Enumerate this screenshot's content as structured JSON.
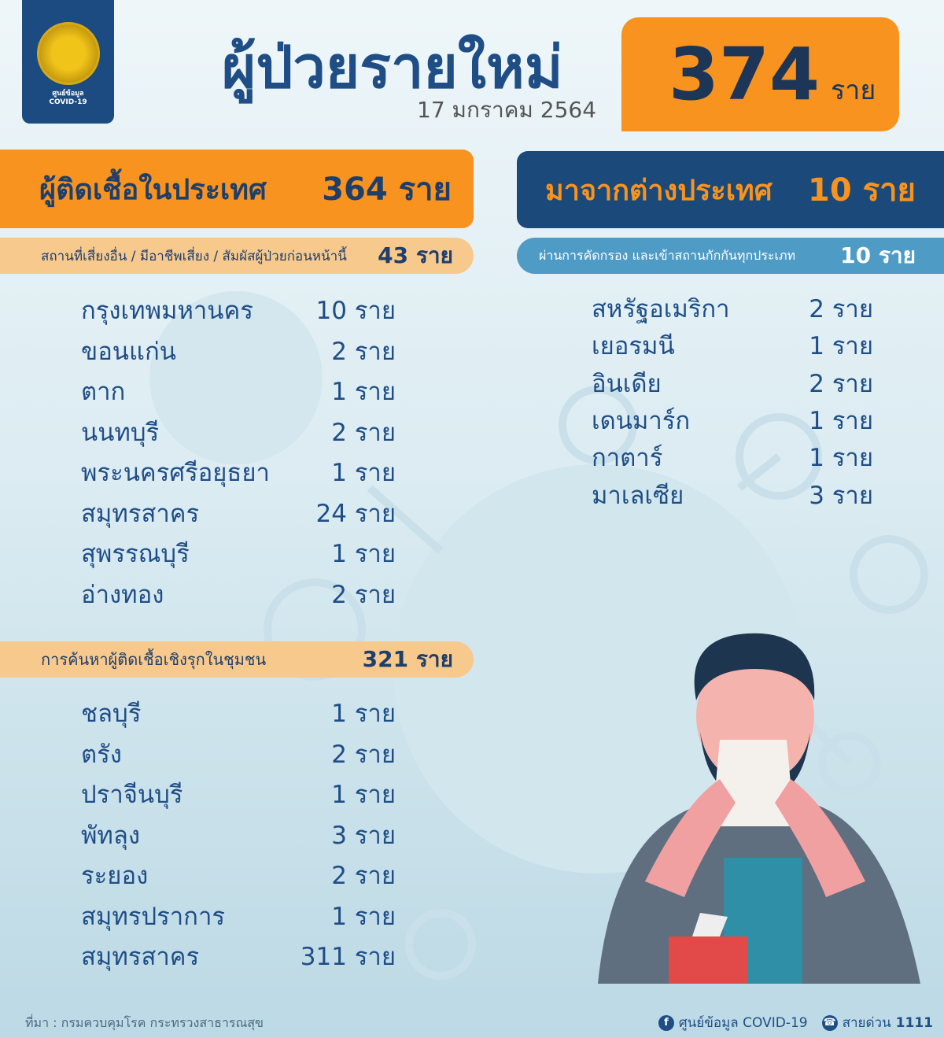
{
  "logo": {
    "text_th": "ศูนย์ข้อมูล",
    "text_en": "COVID-19"
  },
  "header": {
    "title": "ผู้ป่วยรายใหม่",
    "date": "17 มกราคม 2564",
    "total": "374",
    "unit": "ราย"
  },
  "domestic": {
    "label": "ผู้ติดเชื้อในประเทศ",
    "value": "364 ราย"
  },
  "imported": {
    "label": "มาจากต่างประเทศ",
    "value": "10 ราย"
  },
  "risk_group": {
    "label": "สถานที่เสี่ยงอื่น / มีอาชีพเสี่ยง / สัมผัสผู้ป่วยก่อนหน้านี้",
    "value": "43 ราย",
    "items": [
      {
        "name": "กรุงเทพมหานคร",
        "value": "10 ราย"
      },
      {
        "name": "ขอนแก่น",
        "value": "2 ราย"
      },
      {
        "name": "ตาก",
        "value": "1 ราย"
      },
      {
        "name": "นนทบุรี",
        "value": "2 ราย"
      },
      {
        "name": "พระนครศรีอยุธยา",
        "value": "1 ราย"
      },
      {
        "name": "สมุทรสาคร",
        "value": "24 ราย"
      },
      {
        "name": "สุพรรณบุรี",
        "value": "1 ราย"
      },
      {
        "name": "อ่างทอง",
        "value": "2 ราย"
      }
    ]
  },
  "quarantine": {
    "label": "ผ่านการคัดกรอง และเข้าสถานกักกันทุกประเภท",
    "value": "10 ราย",
    "items": [
      {
        "name": "สหรัฐอเมริกา",
        "value": "2 ราย"
      },
      {
        "name": "เยอรมนี",
        "value": "1 ราย"
      },
      {
        "name": "อินเดีย",
        "value": "2 ราย"
      },
      {
        "name": "เดนมาร์ก",
        "value": "1 ราย"
      },
      {
        "name": "กาตาร์",
        "value": "1 ราย"
      },
      {
        "name": "มาเลเซีย",
        "value": "3 ราย"
      }
    ]
  },
  "active_search": {
    "label": "การค้นหาผู้ติดเชื้อเชิงรุกในชุมชน",
    "value": "321 ราย",
    "items": [
      {
        "name": "ชลบุรี",
        "value": "1 ราย"
      },
      {
        "name": "ตรัง",
        "value": "2 ราย"
      },
      {
        "name": "ปราจีนบุรี",
        "value": "1 ราย"
      },
      {
        "name": "พัทลุง",
        "value": "3 ราย"
      },
      {
        "name": "ระยอง",
        "value": "2 ราย"
      },
      {
        "name": "สมุทรปราการ",
        "value": "1 ราย"
      },
      {
        "name": "สมุทรสาคร",
        "value": "311 ราย"
      }
    ]
  },
  "footer": {
    "source": "ที่มา : กรมควบคุมโรค กระทรวงสาธารณสุข",
    "facebook": "ศูนย์ข้อมูล COVID-19",
    "hotline_label": "สายด่วน",
    "hotline": "1111"
  },
  "colors": {
    "orange": "#f7931e",
    "navy": "#1b4a7a",
    "peach": "#f8c98c",
    "blue": "#4e9cc6"
  }
}
